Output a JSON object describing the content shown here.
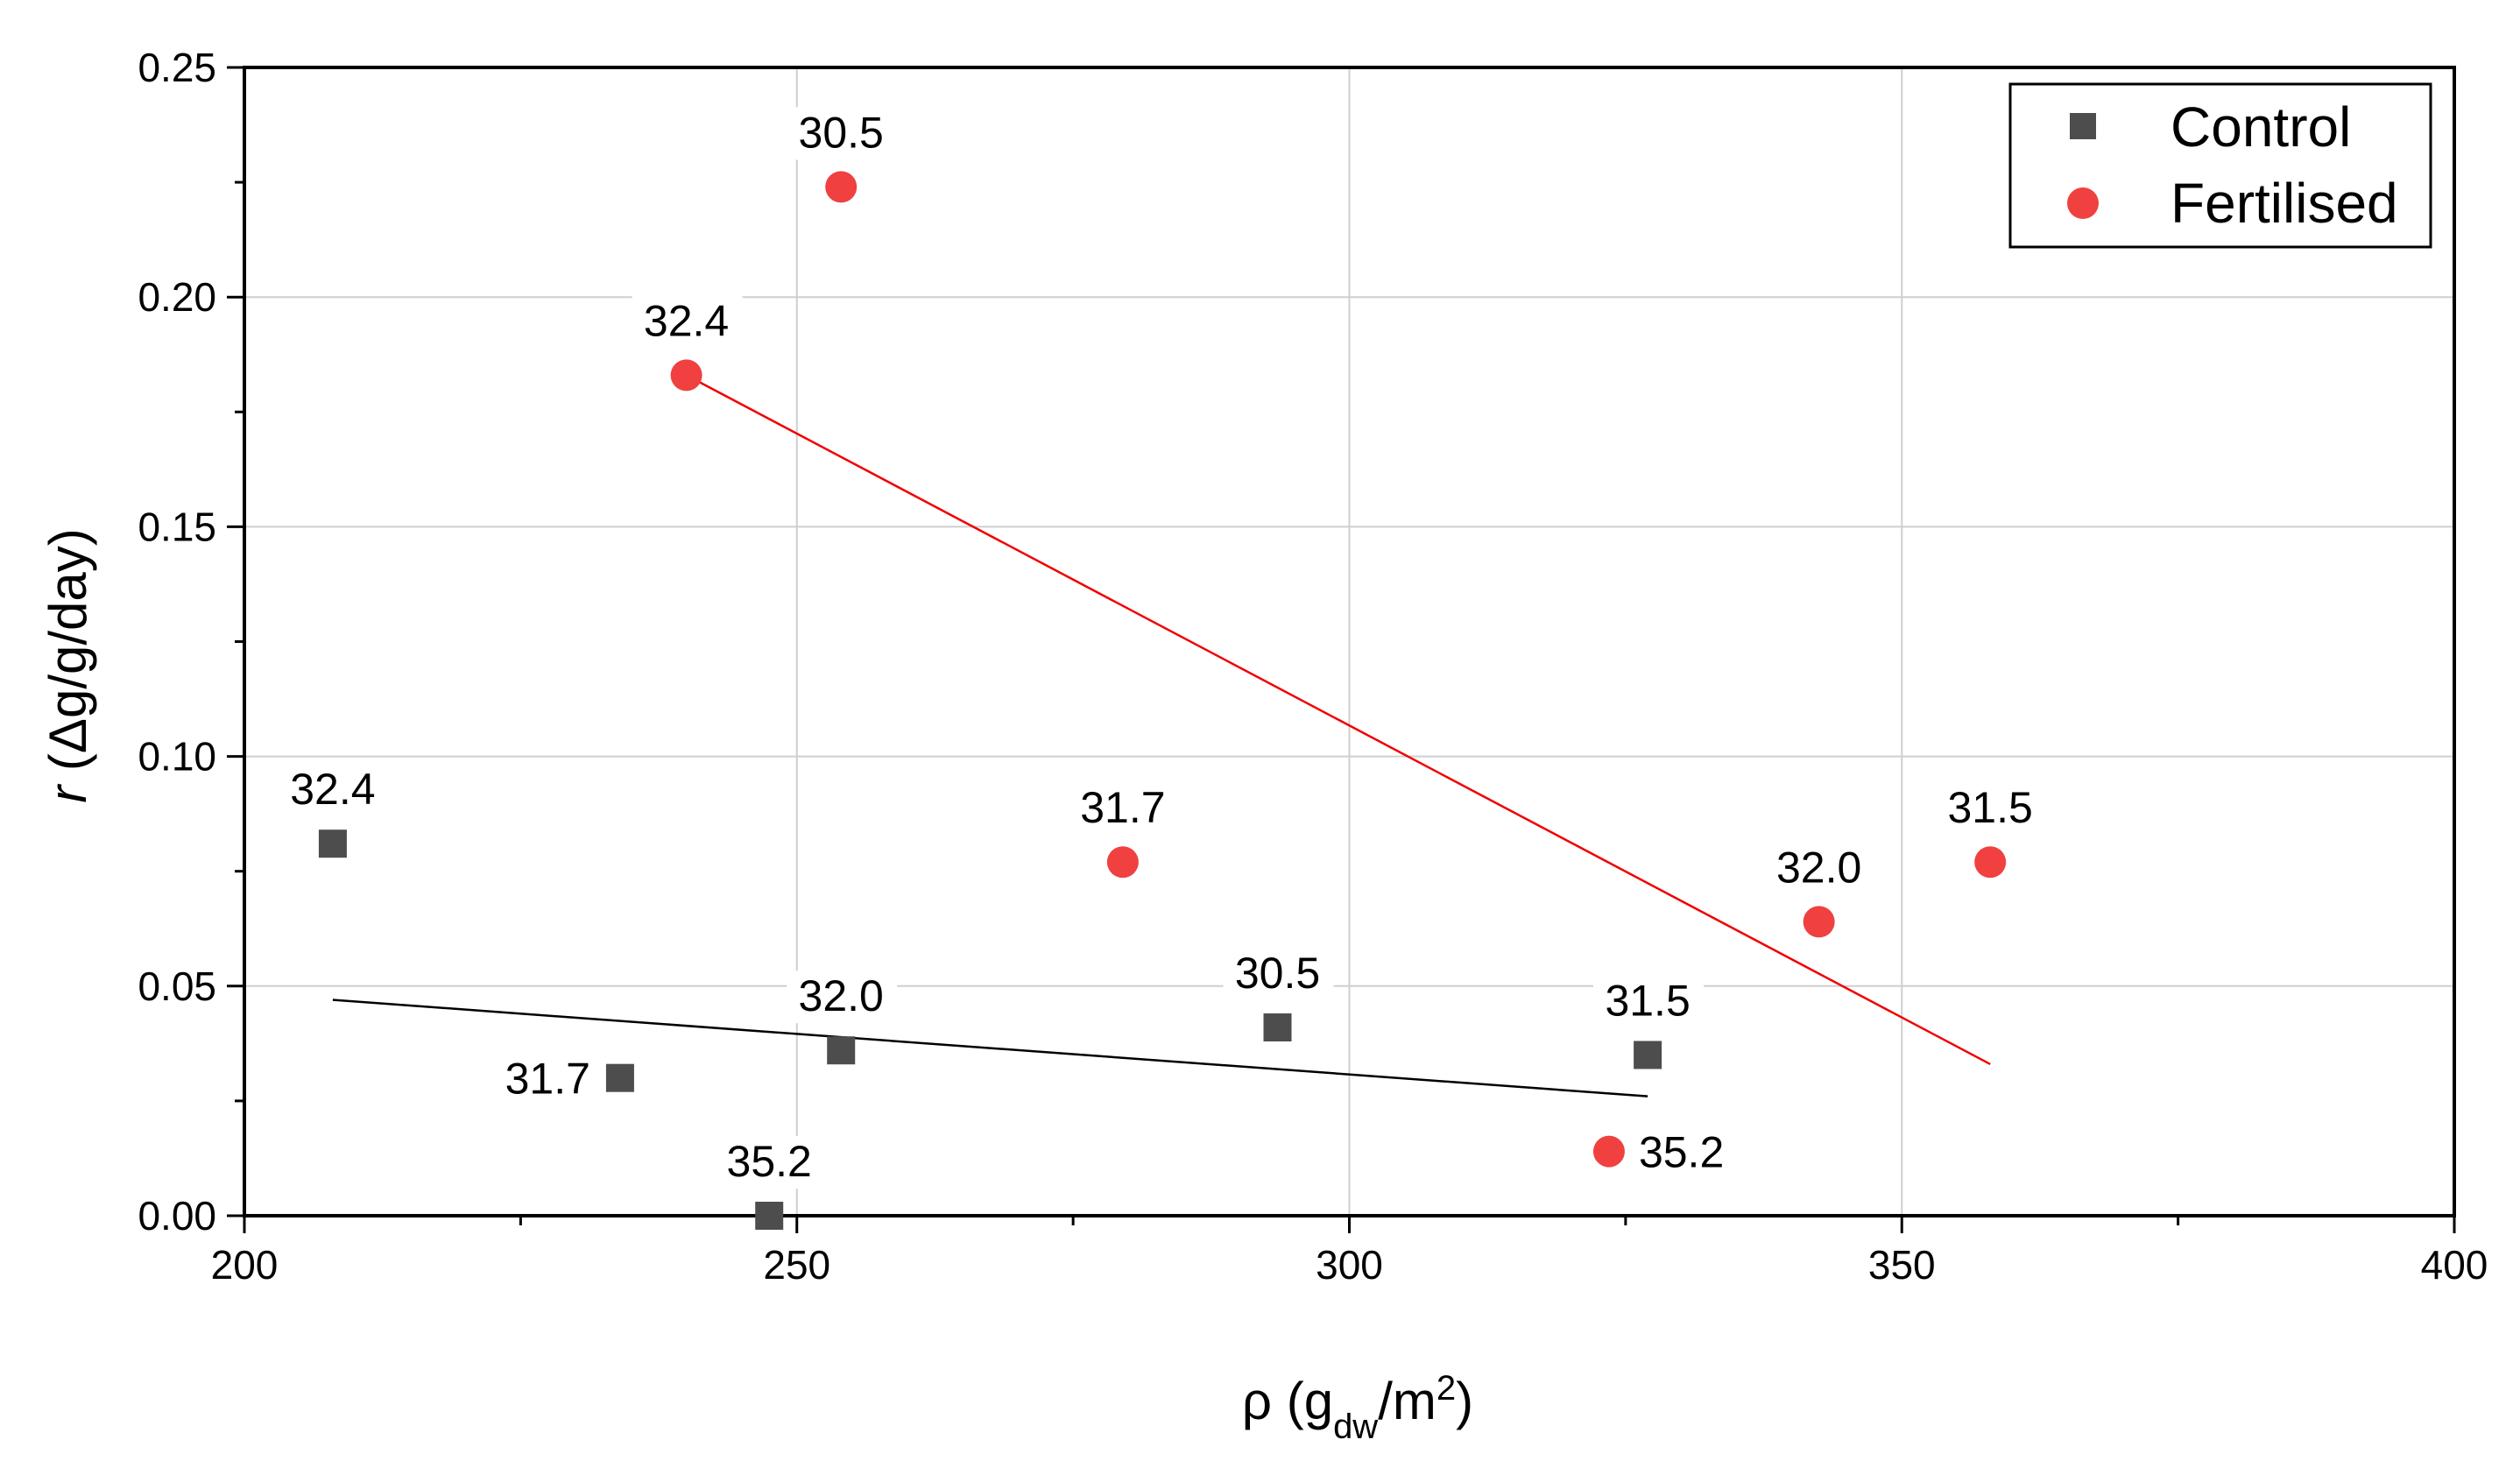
{
  "chart_data": {
    "type": "scatter",
    "xlabel": {
      "base": "ρ (g",
      "sub": "dw",
      "mid": "/m",
      "sup": "2",
      "end": ")"
    },
    "ylabel": {
      "italic": "r",
      "rest": " (Δg/g/day)"
    },
    "xlim": [
      200,
      400
    ],
    "ylim": [
      0,
      0.25
    ],
    "xticks": [
      200,
      250,
      300,
      350,
      400
    ],
    "yticks": [
      0.0,
      0.05,
      0.1,
      0.15,
      0.2,
      0.25
    ],
    "xtick_labels": [
      "200",
      "250",
      "300",
      "350",
      "400"
    ],
    "ytick_labels": [
      "0.00",
      "0.05",
      "0.10",
      "0.15",
      "0.20",
      "0.25"
    ],
    "grid": true,
    "legend_position": "top-right",
    "series": [
      {
        "name": "Control",
        "marker": "square",
        "color": "#4d4d4d",
        "line_color": "#000000",
        "points": [
          {
            "x": 208,
            "y": 0.081,
            "label": "32.4",
            "anchor": "above"
          },
          {
            "x": 234,
            "y": 0.03,
            "label": "31.7",
            "anchor": "left"
          },
          {
            "x": 247.5,
            "y": 0.0,
            "label": "35.2",
            "anchor": "above"
          },
          {
            "x": 254,
            "y": 0.036,
            "label": "32.0",
            "anchor": "above"
          },
          {
            "x": 293.5,
            "y": 0.041,
            "label": "30.5",
            "anchor": "above"
          },
          {
            "x": 327,
            "y": 0.035,
            "label": "31.5",
            "anchor": "above"
          }
        ],
        "fit": {
          "x": [
            208,
            327
          ],
          "y": [
            0.047,
            0.026
          ]
        }
      },
      {
        "name": "Fertilised",
        "marker": "circle",
        "color": "#f04040",
        "line_color": "#f00000",
        "points": [
          {
            "x": 254,
            "y": 0.224,
            "label": "30.5",
            "anchor": "above"
          },
          {
            "x": 240,
            "y": 0.183,
            "label": "32.4",
            "anchor": "above"
          },
          {
            "x": 279.5,
            "y": 0.077,
            "label": "31.7",
            "anchor": "above"
          },
          {
            "x": 342.5,
            "y": 0.064,
            "label": "32.0",
            "anchor": "above"
          },
          {
            "x": 358,
            "y": 0.077,
            "label": "31.5",
            "anchor": "above"
          },
          {
            "x": 323.5,
            "y": 0.014,
            "label": "35.2",
            "anchor": "right"
          }
        ],
        "fit": {
          "x": [
            240,
            358
          ],
          "y": [
            0.183,
            0.033
          ]
        }
      }
    ]
  }
}
